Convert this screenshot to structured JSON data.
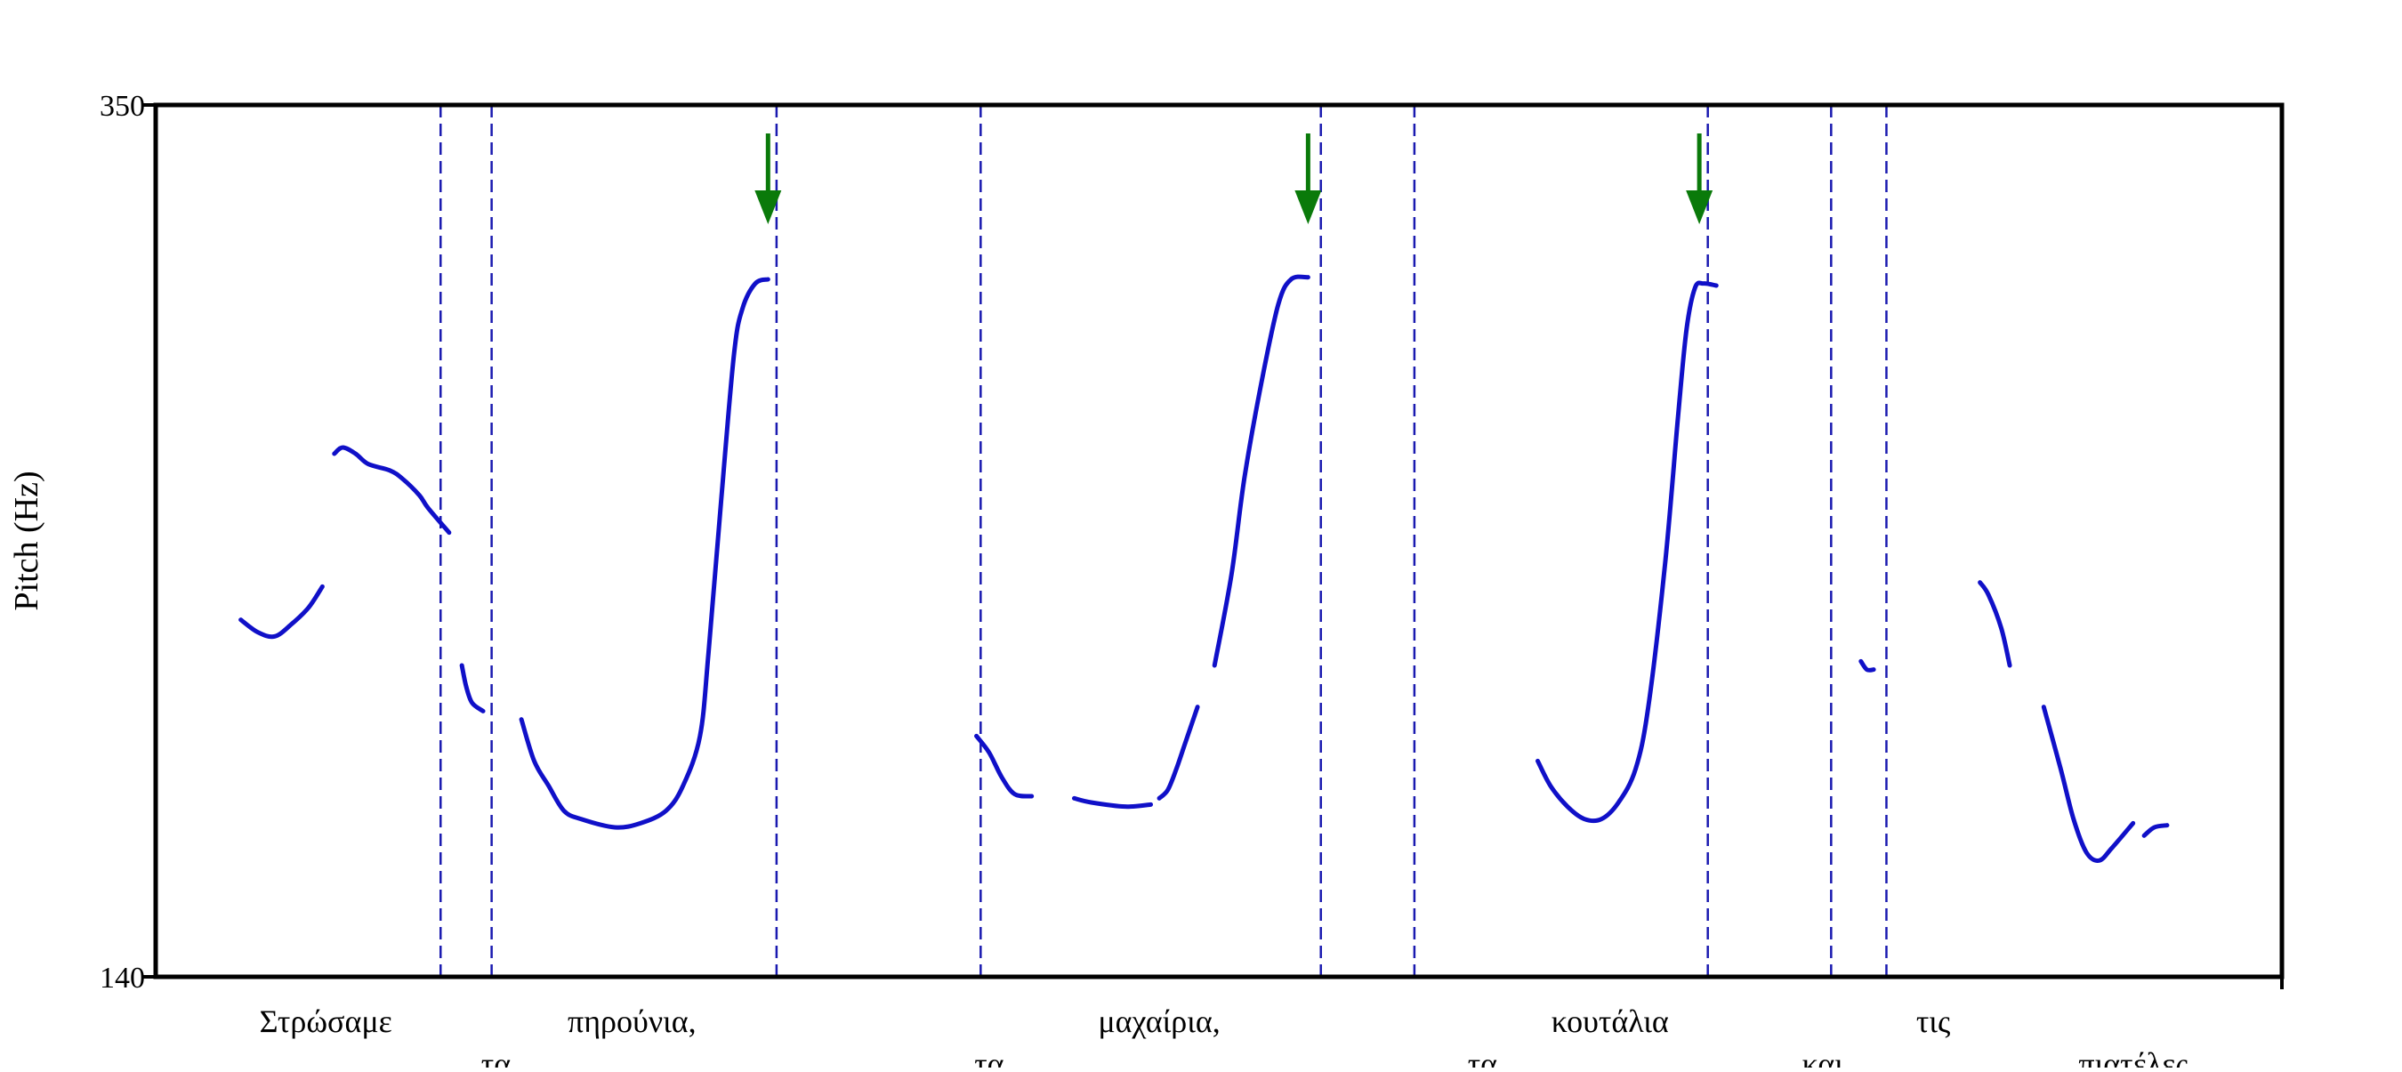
{
  "chart_data": {
    "type": "line",
    "ylabel": "Pitch (Hz)",
    "yticks": [
      "350",
      "140"
    ],
    "ylim": [
      140,
      350
    ],
    "xlim": [
      0,
      2.5
    ],
    "colors": {
      "contour": "#1010c8",
      "boundary": "#1a1ab0",
      "arrow": "#0a7a0a",
      "frame": "#000000"
    },
    "words": [
      {
        "text": "Στρώσαμε",
        "x": 0.2,
        "row": 1
      },
      {
        "text": "τα",
        "x": 0.4,
        "row": 2
      },
      {
        "text": "πηρούνια,",
        "x": 0.56,
        "row": 1
      },
      {
        "text": "τα",
        "x": 0.98,
        "row": 2
      },
      {
        "text": "μαχαίρια,",
        "x": 1.18,
        "row": 1
      },
      {
        "text": "τα",
        "x": 1.56,
        "row": 2
      },
      {
        "text": "κουτάλια",
        "x": 1.71,
        "row": 1
      },
      {
        "text": "και",
        "x": 1.96,
        "row": 2
      },
      {
        "text": "τις",
        "x": 2.09,
        "row": 1
      },
      {
        "text": "πιατέλες.",
        "x": 2.33,
        "row": 2
      }
    ],
    "boundaries": [
      0.335,
      0.395,
      0.73,
      0.97,
      1.37,
      1.48,
      1.825,
      1.97,
      2.035
    ],
    "arrows": [
      0.72,
      1.355,
      1.815
    ],
    "segments": [
      [
        [
          0.1,
          226
        ],
        [
          0.12,
          223
        ],
        [
          0.14,
          222
        ],
        [
          0.16,
          225
        ],
        [
          0.18,
          229
        ],
        [
          0.196,
          234
        ]
      ],
      [
        [
          0.21,
          266
        ],
        [
          0.22,
          267.5
        ],
        [
          0.235,
          266
        ],
        [
          0.25,
          263.5
        ],
        [
          0.275,
          262
        ],
        [
          0.29,
          260
        ],
        [
          0.31,
          256
        ],
        [
          0.32,
          253
        ],
        [
          0.345,
          247
        ]
      ],
      [
        [
          0.36,
          215
        ],
        [
          0.365,
          210
        ],
        [
          0.372,
          206
        ],
        [
          0.385,
          204
        ]
      ],
      [
        [
          0.43,
          202
        ],
        [
          0.445,
          192
        ],
        [
          0.462,
          186
        ],
        [
          0.48,
          180
        ],
        [
          0.5,
          178
        ],
        [
          0.54,
          176
        ],
        [
          0.57,
          177
        ],
        [
          0.6,
          180
        ],
        [
          0.62,
          186
        ],
        [
          0.64,
          198
        ],
        [
          0.65,
          218
        ],
        [
          0.665,
          255
        ],
        [
          0.68,
          290
        ],
        [
          0.69,
          301
        ],
        [
          0.705,
          307
        ],
        [
          0.72,
          308
        ]
      ],
      [
        [
          0.965,
          198
        ],
        [
          0.98,
          194
        ],
        [
          0.995,
          188
        ],
        [
          1.01,
          184
        ],
        [
          1.03,
          183.5
        ]
      ],
      [
        [
          1.08,
          183
        ],
        [
          1.1,
          182
        ],
        [
          1.14,
          181
        ],
        [
          1.17,
          181.5
        ]
      ],
      [
        [
          1.18,
          183
        ],
        [
          1.19,
          185
        ],
        [
          1.2,
          190
        ],
        [
          1.21,
          196
        ],
        [
          1.225,
          205
        ]
      ],
      [
        [
          1.245,
          215
        ],
        [
          1.265,
          237
        ],
        [
          1.28,
          260
        ],
        [
          1.3,
          283
        ],
        [
          1.32,
          302
        ],
        [
          1.335,
          308
        ],
        [
          1.355,
          308.5
        ]
      ],
      [
        [
          1.625,
          192
        ],
        [
          1.64,
          186
        ],
        [
          1.66,
          181
        ],
        [
          1.68,
          178
        ],
        [
          1.7,
          178
        ],
        [
          1.72,
          182
        ],
        [
          1.74,
          190
        ],
        [
          1.755,
          205
        ],
        [
          1.775,
          240
        ],
        [
          1.79,
          275
        ],
        [
          1.8,
          296
        ],
        [
          1.81,
          306
        ],
        [
          1.82,
          307
        ],
        [
          1.835,
          306.5
        ]
      ],
      [
        [
          2.005,
          216
        ],
        [
          2.012,
          214
        ],
        [
          2.02,
          214
        ]
      ],
      [
        [
          2.145,
          235
        ],
        [
          2.155,
          232
        ],
        [
          2.17,
          224
        ],
        [
          2.18,
          215
        ]
      ],
      [
        [
          2.22,
          205
        ],
        [
          2.24,
          190
        ],
        [
          2.255,
          178
        ],
        [
          2.27,
          170
        ],
        [
          2.285,
          168
        ],
        [
          2.3,
          171
        ],
        [
          2.325,
          177
        ]
      ],
      [
        [
          2.338,
          174
        ],
        [
          2.35,
          176
        ],
        [
          2.365,
          176.5
        ]
      ]
    ]
  }
}
